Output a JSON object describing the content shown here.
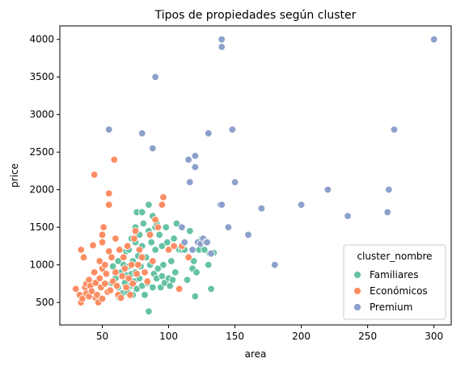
{
  "chart_data": {
    "type": "scatter",
    "title": "Tipos de propiedades según cluster",
    "xlabel": "area",
    "ylabel": "price",
    "xlim": [
      18,
      313
    ],
    "ylim": [
      200,
      4180
    ],
    "xticks": [
      50,
      100,
      150,
      200,
      250,
      300
    ],
    "yticks": [
      500,
      1000,
      1500,
      2000,
      2500,
      3000,
      3500,
      4000
    ],
    "grid": false,
    "legend": {
      "title": "cluster_nombre",
      "position": "lower right"
    },
    "series": [
      {
        "name": "Familiares",
        "color": "#66c2a5",
        "points": [
          [
            55,
            650
          ],
          [
            57,
            760
          ],
          [
            58,
            980
          ],
          [
            60,
            820
          ],
          [
            62,
            700
          ],
          [
            62,
            1050
          ],
          [
            63,
            560
          ],
          [
            64,
            900
          ],
          [
            65,
            620
          ],
          [
            66,
            1000
          ],
          [
            67,
            760
          ],
          [
            68,
            1180
          ],
          [
            68,
            860
          ],
          [
            69,
            640
          ],
          [
            70,
            980
          ],
          [
            70,
            1200
          ],
          [
            71,
            720
          ],
          [
            72,
            880
          ],
          [
            72,
            1350
          ],
          [
            73,
            600
          ],
          [
            73,
            1050
          ],
          [
            74,
            780
          ],
          [
            75,
            1500
          ],
          [
            75,
            1300
          ],
          [
            75,
            900
          ],
          [
            76,
            680
          ],
          [
            76,
            1700
          ],
          [
            77,
            1120
          ],
          [
            78,
            820
          ],
          [
            78,
            1400
          ],
          [
            79,
            980
          ],
          [
            80,
            1250
          ],
          [
            80,
            720
          ],
          [
            80,
            1700
          ],
          [
            81,
            1550
          ],
          [
            82,
            900
          ],
          [
            82,
            600
          ],
          [
            83,
            1100
          ],
          [
            84,
            760
          ],
          [
            85,
            1800
          ],
          [
            85,
            1450
          ],
          [
            85,
            380
          ],
          [
            86,
            1000
          ],
          [
            87,
            1300
          ],
          [
            88,
            700
          ],
          [
            88,
            1650
          ],
          [
            89,
            880
          ],
          [
            90,
            1500
          ],
          [
            90,
            1200
          ],
          [
            91,
            1550
          ],
          [
            91,
            820
          ],
          [
            92,
            950
          ],
          [
            93,
            1400
          ],
          [
            94,
            700
          ],
          [
            95,
            1250
          ],
          [
            95,
            850
          ],
          [
            96,
            1000
          ],
          [
            97,
            760
          ],
          [
            98,
            1500
          ],
          [
            99,
            1300
          ],
          [
            100,
            820
          ],
          [
            101,
            720
          ],
          [
            102,
            1050
          ],
          [
            103,
            800
          ],
          [
            104,
            1350
          ],
          [
            105,
            900
          ],
          [
            106,
            1550
          ],
          [
            108,
            1200
          ],
          [
            110,
            1200
          ],
          [
            112,
            1200
          ],
          [
            114,
            800
          ],
          [
            116,
            1450
          ],
          [
            118,
            950
          ],
          [
            119,
            1050
          ],
          [
            120,
            580
          ],
          [
            121,
            900
          ],
          [
            122,
            1300
          ],
          [
            123,
            1200
          ],
          [
            125,
            1350
          ],
          [
            127,
            1200
          ],
          [
            130,
            1000
          ],
          [
            131,
            1150
          ],
          [
            132,
            680
          ],
          [
            134,
            1160
          ]
        ]
      },
      {
        "name": "Económicos",
        "color": "#fc8d62",
        "points": [
          [
            30,
            680
          ],
          [
            33,
            600
          ],
          [
            34,
            500
          ],
          [
            34,
            1200
          ],
          [
            35,
            550
          ],
          [
            36,
            1100
          ],
          [
            37,
            700
          ],
          [
            38,
            750
          ],
          [
            38,
            620
          ],
          [
            40,
            580
          ],
          [
            40,
            800
          ],
          [
            41,
            720
          ],
          [
            42,
            650
          ],
          [
            43,
            1260
          ],
          [
            44,
            2200
          ],
          [
            44,
            900
          ],
          [
            45,
            560
          ],
          [
            45,
            760
          ],
          [
            46,
            600
          ],
          [
            47,
            500
          ],
          [
            48,
            820
          ],
          [
            48,
            1050
          ],
          [
            49,
            700
          ],
          [
            50,
            1400
          ],
          [
            50,
            1300
          ],
          [
            50,
            950
          ],
          [
            50,
            550
          ],
          [
            51,
            1500
          ],
          [
            52,
            750
          ],
          [
            52,
            1000
          ],
          [
            53,
            880
          ],
          [
            54,
            640
          ],
          [
            55,
            1950
          ],
          [
            55,
            1800
          ],
          [
            55,
            1180
          ],
          [
            56,
            660
          ],
          [
            57,
            1100
          ],
          [
            58,
            780
          ],
          [
            59,
            2400
          ],
          [
            60,
            1350
          ],
          [
            60,
            900
          ],
          [
            61,
            720
          ],
          [
            62,
            600
          ],
          [
            63,
            1200
          ],
          [
            64,
            560
          ],
          [
            65,
            850
          ],
          [
            66,
            1100
          ],
          [
            67,
            950
          ],
          [
            68,
            700
          ],
          [
            69,
            1250
          ],
          [
            70,
            820
          ],
          [
            71,
            600
          ],
          [
            72,
            1000
          ],
          [
            73,
            750
          ],
          [
            74,
            1350
          ],
          [
            75,
            1450
          ],
          [
            76,
            880
          ],
          [
            77,
            1000
          ],
          [
            78,
            1200
          ],
          [
            80,
            1100
          ],
          [
            82,
            900
          ],
          [
            84,
            780
          ],
          [
            86,
            1400
          ],
          [
            88,
            1050
          ],
          [
            90,
            1600
          ],
          [
            92,
            1500
          ],
          [
            95,
            1800
          ],
          [
            96,
            1900
          ],
          [
            100,
            1200
          ],
          [
            104,
            1250
          ],
          [
            108,
            680
          ],
          [
            110,
            1250
          ],
          [
            115,
            1100
          ]
        ]
      },
      {
        "name": "Premium",
        "color": "#8da0cb",
        "points": [
          [
            55,
            2800
          ],
          [
            80,
            2750
          ],
          [
            88,
            2550
          ],
          [
            90,
            3500
          ],
          [
            115,
            2400
          ],
          [
            120,
            2450
          ],
          [
            120,
            2300
          ],
          [
            116,
            2100
          ],
          [
            110,
            1500
          ],
          [
            112,
            1300
          ],
          [
            118,
            1200
          ],
          [
            122,
            1300
          ],
          [
            124,
            1280
          ],
          [
            126,
            1350
          ],
          [
            128,
            1300
          ],
          [
            129,
            1300
          ],
          [
            130,
            2750
          ],
          [
            132,
            1150
          ],
          [
            139,
            1800
          ],
          [
            140,
            3900
          ],
          [
            140,
            4000
          ],
          [
            140,
            1800
          ],
          [
            145,
            1500
          ],
          [
            148,
            2800
          ],
          [
            150,
            2100
          ],
          [
            160,
            1400
          ],
          [
            170,
            1750
          ],
          [
            180,
            1000
          ],
          [
            200,
            1800
          ],
          [
            220,
            2000
          ],
          [
            235,
            1650
          ],
          [
            265,
            1700
          ],
          [
            266,
            2000
          ],
          [
            270,
            2800
          ],
          [
            300,
            4000
          ]
        ]
      }
    ]
  }
}
